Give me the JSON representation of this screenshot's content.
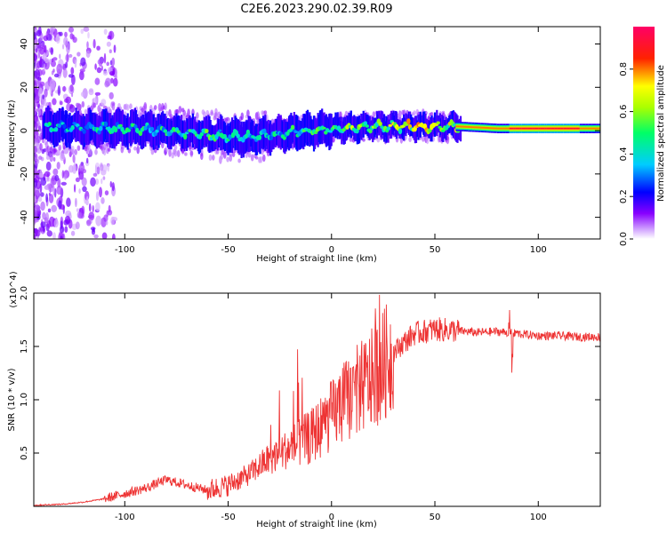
{
  "title": "C2E6.2023.290.02.39.R09",
  "chart_data": [
    {
      "type": "heatmap",
      "xlabel": "Height of straight line (km)",
      "ylabel": "Frequency (Hz)",
      "xlim": [
        -144,
        130
      ],
      "ylim": [
        -50,
        48
      ],
      "xticks": [
        -100,
        -50,
        0,
        50,
        100
      ],
      "yticks": [
        -40,
        -20,
        0,
        20,
        40
      ],
      "colorbar": {
        "label": "Normalized spectral amplitude",
        "range": [
          0,
          1
        ],
        "ticks": [
          0.0,
          0.2,
          0.4,
          0.6,
          0.8
        ],
        "colors": [
          "#ffffff",
          "#cc88ff",
          "#7700ff",
          "#0000ff",
          "#00ccff",
          "#00ff66",
          "#ffff00",
          "#ff0000",
          "#ff0066"
        ]
      },
      "ridge": {
        "x": [
          -140,
          -120,
          -100,
          -80,
          -60,
          -40,
          -20,
          0,
          20,
          40,
          60,
          80,
          100,
          130
        ],
        "center_hz": [
          2,
          1,
          1,
          0,
          -2,
          -3,
          -1,
          1,
          2,
          2,
          2,
          1,
          1,
          1
        ],
        "amplitude": [
          0.45,
          0.4,
          0.45,
          0.45,
          0.5,
          0.4,
          0.45,
          0.55,
          0.6,
          0.7,
          0.65,
          0.75,
          0.85,
          0.7
        ]
      }
    },
    {
      "type": "line",
      "xlabel": "Height of straight line (km)",
      "ylabel": "SNR (10 * v/v)",
      "y_multiplier": "(x10^4)",
      "xlim": [
        -144,
        130
      ],
      "ylim": [
        0,
        2.0
      ],
      "xticks": [
        -100,
        -50,
        0,
        50,
        100
      ],
      "yticks": [
        0.5,
        1.0,
        1.5,
        2.0
      ],
      "color": "#ee3333",
      "series": [
        {
          "x": [
            -144,
            -130,
            -120,
            -110,
            -100,
            -90,
            -80,
            -70,
            -60,
            -50,
            -40,
            -30,
            -20,
            -10,
            0,
            10,
            20,
            30,
            40,
            50,
            60,
            70,
            80,
            90,
            100,
            110,
            120,
            130
          ],
          "values": [
            0.01,
            0.02,
            0.04,
            0.07,
            0.12,
            0.17,
            0.25,
            0.2,
            0.15,
            0.2,
            0.3,
            0.45,
            0.55,
            0.65,
            0.85,
            1.05,
            1.2,
            1.45,
            1.62,
            1.66,
            1.65,
            1.63,
            1.64,
            1.62,
            1.6,
            1.6,
            1.59,
            1.59
          ]
        }
      ]
    }
  ]
}
